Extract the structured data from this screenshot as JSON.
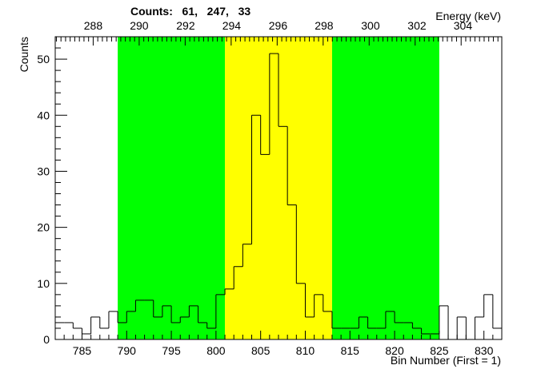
{
  "chart_data": {
    "type": "bar",
    "title": "Counts:   61,   247,   33",
    "xlabel": "Bin Number (First = 1)",
    "ylabel": "Counts",
    "x2label": "Energy (keV)",
    "xlim": [
      782,
      832
    ],
    "ylim": [
      0,
      54
    ],
    "bins_start": 782,
    "bin_width": 1,
    "values": [
      3,
      3,
      2,
      1,
      4,
      2,
      5,
      3,
      5,
      7,
      7,
      4,
      6,
      3,
      4,
      6,
      3,
      2,
      8,
      9,
      13,
      17,
      40,
      33,
      51,
      38,
      24,
      10,
      4,
      8,
      5,
      2,
      2,
      2,
      4,
      2,
      2,
      5,
      3,
      3,
      2,
      1,
      1,
      6,
      0,
      4,
      0,
      4,
      8,
      2
    ],
    "regions": [
      {
        "name": "left-background",
        "from": 789,
        "to": 801,
        "color": "#00ff00"
      },
      {
        "name": "peak",
        "from": 801,
        "to": 813,
        "color": "#ffff00"
      },
      {
        "name": "right-background",
        "from": 813,
        "to": 825,
        "color": "#00ff00"
      }
    ],
    "x_ticks": [
      "785",
      "790",
      "795",
      "800",
      "805",
      "810",
      "815",
      "820",
      "825",
      "830"
    ],
    "y_ticks": [
      "0",
      "10",
      "20",
      "30",
      "40",
      "50"
    ],
    "energy_ticks": [
      {
        "bin": 786.25,
        "label": "288"
      },
      {
        "bin": 791.4,
        "label": "290"
      },
      {
        "bin": 796.6,
        "label": "292"
      },
      {
        "bin": 801.75,
        "label": "294"
      },
      {
        "bin": 806.95,
        "label": "296"
      },
      {
        "bin": 812.1,
        "label": "298"
      },
      {
        "bin": 817.3,
        "label": "300"
      },
      {
        "bin": 822.5,
        "label": "302"
      },
      {
        "bin": 827.65,
        "label": "304"
      }
    ],
    "energy_minor_step_bins": 0.515,
    "grid": false,
    "line_color": "#000000"
  }
}
